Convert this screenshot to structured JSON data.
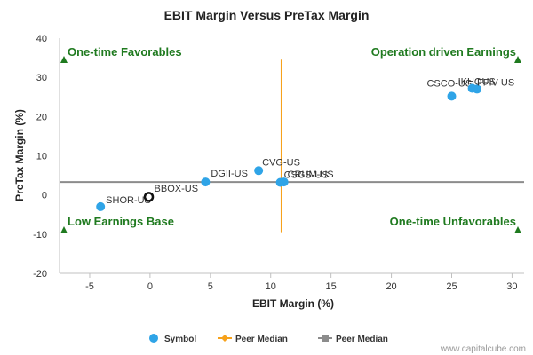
{
  "chart_data": {
    "type": "scatter",
    "title": "EBIT Margin Versus PreTax Margin",
    "xlabel": "EBIT Margin (%)",
    "ylabel": "PreTax Margin (%)",
    "xlim": [
      -7.5,
      31
    ],
    "ylim": [
      -20,
      40
    ],
    "xticks": [
      -5,
      0,
      5,
      10,
      15,
      20,
      25,
      30
    ],
    "yticks": [
      -20,
      -10,
      0,
      10,
      20,
      30,
      40
    ],
    "grid": false,
    "legend": "bottom",
    "series": [
      {
        "name": "Symbol",
        "color": "#2fa4e7",
        "points": [
          {
            "label": "SHOR-US",
            "x": -4.1,
            "y": -3.0
          },
          {
            "label": "BBOX-US",
            "x": -0.1,
            "y": -0.5,
            "highlighted": true
          },
          {
            "label": "DGII-US",
            "x": 4.6,
            "y": 3.3
          },
          {
            "label": "CVG-US",
            "x": 9.0,
            "y": 6.2
          },
          {
            "label": "CSGS-US",
            "x": 10.8,
            "y": 3.2
          },
          {
            "label": "CRUM-US",
            "x": 11.1,
            "y": 3.3
          },
          {
            "label": "CSCO-US",
            "x": 25.0,
            "y": 25.2
          },
          {
            "label": "IKHQUS",
            "x": 26.7,
            "y": 27.2
          },
          {
            "label": "FFIV-US",
            "x": 27.1,
            "y": 27.0
          }
        ]
      },
      {
        "name": "Peer Median",
        "color": "#f7a21b",
        "orientation": "vertical",
        "x": 10.9,
        "y_range": [
          -9.5,
          34.5
        ]
      },
      {
        "name": "Peer Median",
        "color": "#8c8c8c",
        "orientation": "horizontal",
        "y": 3.3,
        "x_range": [
          -7.5,
          31
        ]
      }
    ],
    "quadrants": {
      "top_left": "One-time Favorables",
      "top_right": "Operation driven Earnings",
      "bottom_left": "Low Earnings Base",
      "bottom_right": "One-time Unfavorables"
    },
    "quadrant_color": "#1f7a1f"
  },
  "credit": "www.capitalcube.com"
}
